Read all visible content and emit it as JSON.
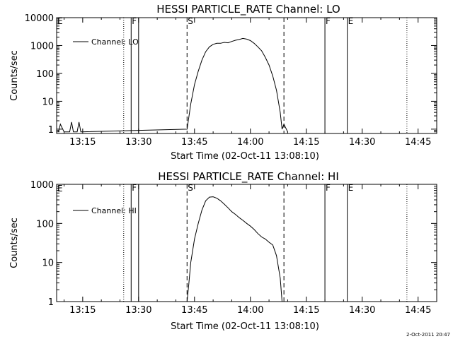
{
  "footer_timestamp": "2-Oct-2011 20:47",
  "chart_data": [
    {
      "type": "line",
      "title": "HESSI PARTICLE_RATE Channel: LO",
      "xlabel": "Start Time (02-Oct-11 13:08:10)",
      "ylabel": "Counts/sec",
      "y_scale": "log",
      "xlim": [
        "13:08",
        "14:50"
      ],
      "ylim": [
        0.7,
        10000
      ],
      "x_tick_labels": [
        "13:15",
        "13:30",
        "13:45",
        "14:00",
        "14:15",
        "14:30",
        "14:45"
      ],
      "y_tick_labels": [
        "1",
        "10",
        "100",
        "1000",
        "10000"
      ],
      "legend": {
        "position": "top-left",
        "entries": [
          "Channel: LO"
        ]
      },
      "series": [
        {
          "name": "Channel: LO",
          "x": [
            "13:08:30",
            "13:09:00",
            "13:10:00",
            "13:11:30",
            "13:12:00",
            "13:12:30",
            "13:13:30",
            "13:14:00",
            "13:14:30",
            "13:43:00",
            "13:44:00",
            "13:45:00",
            "13:46:00",
            "13:47:00",
            "13:48:00",
            "13:49:00",
            "13:50:00",
            "13:51:00",
            "13:52:00",
            "13:53:00",
            "13:54:00",
            "13:55:00",
            "13:56:00",
            "13:57:00",
            "13:58:00",
            "13:59:00",
            "14:00:00",
            "14:01:00",
            "14:02:00",
            "14:03:00",
            "14:04:00",
            "14:05:00",
            "14:06:00",
            "14:07:00",
            "14:08:00",
            "14:08:30",
            "14:09:00",
            "14:10:00"
          ],
          "values": [
            0.8,
            1.5,
            0.8,
            0.8,
            1.8,
            0.8,
            0.8,
            1.8,
            0.8,
            1,
            8,
            40,
            120,
            300,
            600,
            900,
            1100,
            1200,
            1200,
            1300,
            1250,
            1400,
            1550,
            1650,
            1800,
            1700,
            1500,
            1200,
            900,
            650,
            380,
            200,
            80,
            25,
            4,
            1,
            1.5,
            0.8
          ]
        }
      ],
      "markers": [
        {
          "time": "13:26",
          "style": "dotted",
          "label": ""
        },
        {
          "time": "13:28",
          "style": "solid",
          "label": "F"
        },
        {
          "time": "13:30",
          "style": "solid",
          "label": ""
        },
        {
          "time": "13:43",
          "style": "dashed",
          "label": "S"
        },
        {
          "time": "14:09",
          "style": "dashed",
          "label": ""
        },
        {
          "time": "14:20",
          "style": "solid",
          "label": "F"
        },
        {
          "time": "14:26",
          "style": "solid",
          "label": "E"
        },
        {
          "time": "14:42",
          "style": "dotted",
          "label": ""
        }
      ],
      "corner_marker": "E"
    },
    {
      "type": "line",
      "title": "HESSI PARTICLE_RATE Channel: HI",
      "xlabel": "Start Time (02-Oct-11 13:08:10)",
      "ylabel": "Counts/sec",
      "y_scale": "log",
      "xlim": [
        "13:08",
        "14:50"
      ],
      "ylim": [
        1,
        1000
      ],
      "x_tick_labels": [
        "13:15",
        "13:30",
        "13:45",
        "14:00",
        "14:15",
        "14:30",
        "14:45"
      ],
      "y_tick_labels": [
        "1",
        "10",
        "100",
        "1000"
      ],
      "legend": {
        "position": "top-left",
        "entries": [
          "Channel: HI"
        ]
      },
      "series": [
        {
          "name": "Channel: HI",
          "x": [
            "13:43:00",
            "13:43:30",
            "13:44:00",
            "13:45:00",
            "13:46:00",
            "13:47:00",
            "13:48:00",
            "13:49:00",
            "13:50:00",
            "13:51:00",
            "13:52:00",
            "13:53:00",
            "13:54:00",
            "13:55:00",
            "13:56:00",
            "13:57:00",
            "13:58:00",
            "13:59:00",
            "14:00:00",
            "14:01:00",
            "14:02:00",
            "14:03:00",
            "14:04:00",
            "14:05:00",
            "14:06:00",
            "14:07:00",
            "14:08:00",
            "14:08:30"
          ],
          "values": [
            1,
            3,
            10,
            40,
            100,
            220,
            380,
            470,
            480,
            440,
            380,
            310,
            250,
            200,
            170,
            140,
            120,
            100,
            85,
            70,
            55,
            45,
            40,
            33,
            28,
            15,
            4,
            1
          ]
        }
      ],
      "markers": [
        {
          "time": "13:26",
          "style": "dotted",
          "label": ""
        },
        {
          "time": "13:28",
          "style": "solid",
          "label": "F"
        },
        {
          "time": "13:30",
          "style": "solid",
          "label": ""
        },
        {
          "time": "13:43",
          "style": "dashed",
          "label": "S"
        },
        {
          "time": "14:09",
          "style": "dashed",
          "label": ""
        },
        {
          "time": "14:20",
          "style": "solid",
          "label": "F"
        },
        {
          "time": "14:26",
          "style": "solid",
          "label": "E"
        },
        {
          "time": "14:42",
          "style": "dotted",
          "label": ""
        }
      ],
      "corner_marker": "E"
    }
  ]
}
